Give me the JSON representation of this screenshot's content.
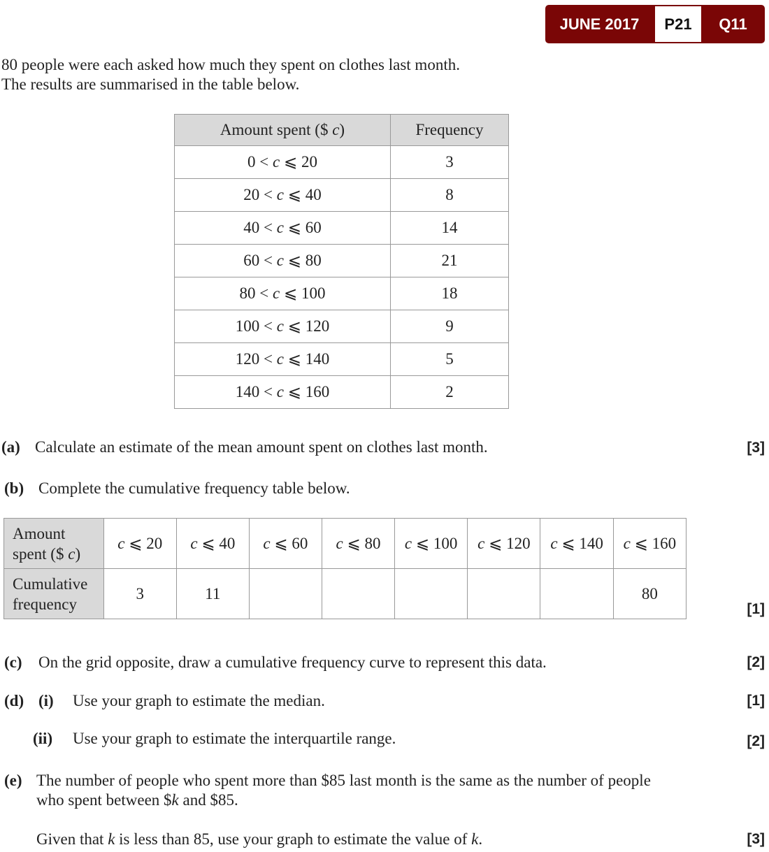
{
  "badge": {
    "session": "JUNE 2017",
    "paper": "P21",
    "question": "Q11",
    "color": "#7a0606"
  },
  "intro": [
    "80 people were each asked how much they spent on clothes last month.",
    "The results are summarised in the table below."
  ],
  "freq_table": {
    "headers": [
      "Amount spent ($ c)",
      "Frequency"
    ],
    "rows": [
      {
        "range": "0 < c ⩽  20",
        "freq": "3"
      },
      {
        "range": "20 < c ⩽  40",
        "freq": "8"
      },
      {
        "range": "40 < c ⩽  60",
        "freq": "14"
      },
      {
        "range": "60 < c ⩽  80",
        "freq": "21"
      },
      {
        "range": "80 < c ⩽ 100",
        "freq": "18"
      },
      {
        "range": "100 < c ⩽ 120",
        "freq": "9"
      },
      {
        "range": "120 < c ⩽ 140",
        "freq": "5"
      },
      {
        "range": "140 < c ⩽ 160",
        "freq": "2"
      }
    ]
  },
  "parts": {
    "a": {
      "label": "(a)",
      "text": "Calculate an estimate of the mean amount spent on clothes last month.",
      "marks": "[3]"
    },
    "b": {
      "label": "(b)",
      "text": "Complete the cumulative frequency table below.",
      "marks": "[1]"
    },
    "c": {
      "label": "(c)",
      "text": "On the grid opposite, draw a cumulative frequency curve to represent this data.",
      "marks": "[2]"
    },
    "d": {
      "label": "(d)",
      "i_label": "(i)",
      "i_text": "Use your graph to estimate the median.",
      "i_marks": "[1]",
      "ii_label": "(ii)",
      "ii_text": "Use your graph to estimate the interquartile range.",
      "ii_marks": "[2]"
    },
    "e": {
      "label": "(e)",
      "line1": "The number of people who spent more than $85 last month is the same as the number of people",
      "line2": "who spent between $k and $85.",
      "line3": "Given that k is less than 85, use your graph to estimate the value of k.",
      "marks": "[3]"
    }
  },
  "cum_table": {
    "row1_header": [
      "Amount",
      "spent ($ c)"
    ],
    "row2_header": [
      "Cumulative",
      "frequency"
    ],
    "columns": [
      "c ⩽ 20",
      "c ⩽ 40",
      "c ⩽ 60",
      "c ⩽ 80",
      "c ⩽ 100",
      "c ⩽ 120",
      "c ⩽ 140",
      "c ⩽ 160"
    ],
    "values": [
      "3",
      "11",
      "",
      "",
      "",
      "",
      "",
      "80"
    ]
  }
}
